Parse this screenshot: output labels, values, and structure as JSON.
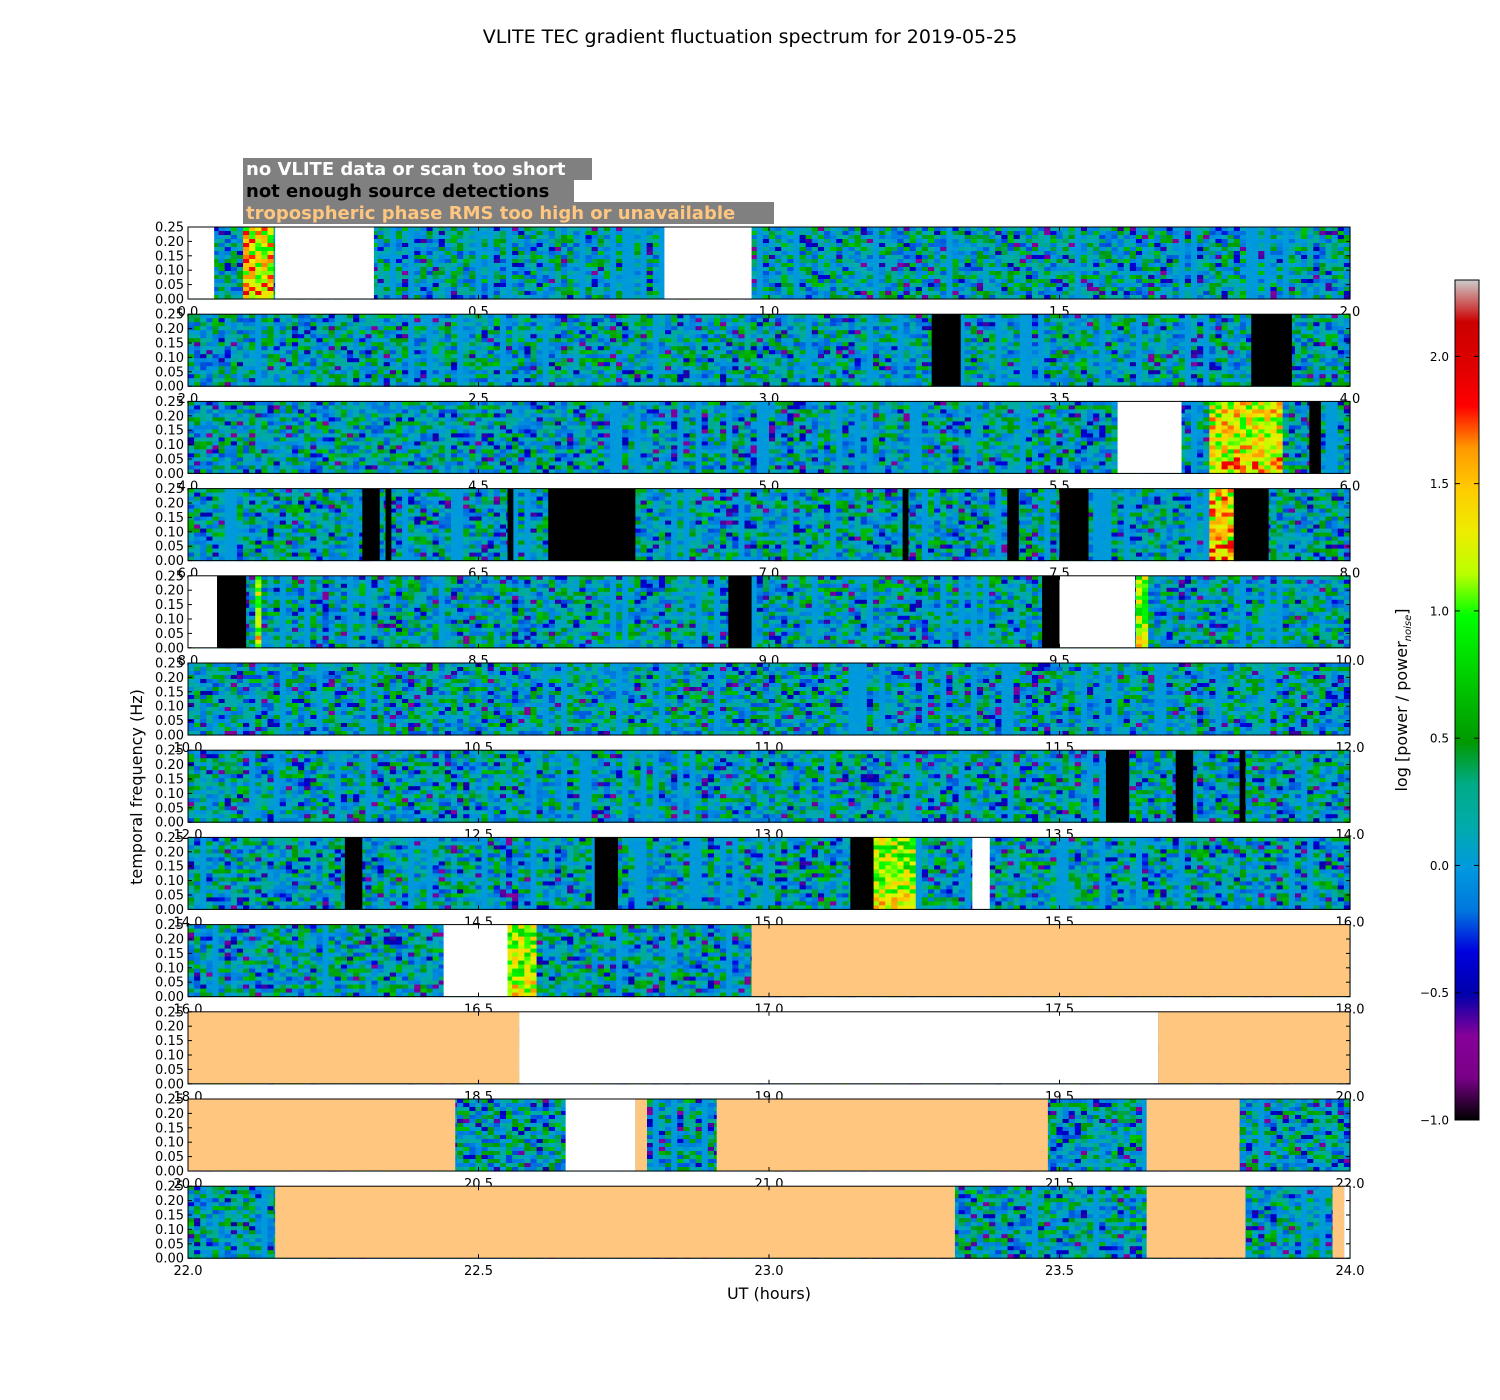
{
  "chart_data": {
    "type": "heatmap",
    "title": "VLITE TEC gradient fluctuation spectrum for 2019-05-25",
    "xlabel": "UT (hours)",
    "ylabel": "temporal frequency (Hz)",
    "ylim": [
      0,
      0.25
    ],
    "y_ticks": [
      "0.00",
      "0.05",
      "0.10",
      "0.15",
      "0.20",
      "0.25"
    ],
    "legend": [
      {
        "label": "no VLITE data or scan too short",
        "text_color": "#ffffff",
        "swatch": "#ffffff"
      },
      {
        "label": "not enough source detections",
        "text_color": "#000000",
        "swatch": "#000000"
      },
      {
        "label": "tropospheric phase RMS too high or unavailable",
        "text_color": "#ffc67f",
        "swatch": "#ffc67f"
      }
    ],
    "legend_placement": "top-left",
    "colorbar": {
      "label_main": "log [power / power",
      "label_sub": "noise",
      "label_end": "]",
      "range": [
        -1.0,
        2.3
      ],
      "ticks": [
        "−1.0",
        "−0.5",
        "0.0",
        "0.5",
        "1.0",
        "1.5",
        "2.0"
      ],
      "tick_values": [
        -1.0,
        -0.5,
        0.0,
        0.5,
        1.0,
        1.5,
        2.0
      ],
      "colormap": "nipy_spectral"
    },
    "panels": [
      {
        "xlim": [
          0,
          2
        ],
        "ticks": [
          "0.0",
          "0.5",
          "1.0",
          "1.5",
          "2.0"
        ],
        "flag_intervals": [
          {
            "start": 0.0,
            "end": 0.045,
            "flag": "no_data"
          },
          {
            "start": 0.15,
            "end": 0.32,
            "flag": "no_data"
          },
          {
            "start": 0.82,
            "end": 0.97,
            "flag": "no_data"
          }
        ],
        "hot_intervals": [
          {
            "start": 0.1,
            "end": 0.15,
            "level": 1.6
          }
        ]
      },
      {
        "xlim": [
          2,
          4
        ],
        "ticks": [
          "2.0",
          "2.5",
          "3.0",
          "3.5",
          "4.0"
        ],
        "flag_intervals": [
          {
            "start": 3.28,
            "end": 3.33,
            "flag": "few_detections"
          },
          {
            "start": 3.83,
            "end": 3.9,
            "flag": "few_detections"
          }
        ],
        "hot_intervals": []
      },
      {
        "xlim": [
          4,
          6
        ],
        "ticks": [
          "4.0",
          "4.5",
          "5.0",
          "5.5",
          "6.0"
        ],
        "flag_intervals": [
          {
            "start": 5.6,
            "end": 5.71,
            "flag": "no_data"
          },
          {
            "start": 5.93,
            "end": 5.95,
            "flag": "few_detections"
          }
        ],
        "hot_intervals": [
          {
            "start": 5.76,
            "end": 5.88,
            "level": 1.5
          }
        ]
      },
      {
        "xlim": [
          6,
          8
        ],
        "ticks": [
          "6.0",
          "6.5",
          "7.0",
          "7.5",
          "8.0"
        ],
        "flag_intervals": [
          {
            "start": 6.3,
            "end": 6.33,
            "flag": "few_detections"
          },
          {
            "start": 6.34,
            "end": 6.35,
            "flag": "few_detections"
          },
          {
            "start": 6.55,
            "end": 6.56,
            "flag": "few_detections"
          },
          {
            "start": 6.62,
            "end": 6.77,
            "flag": "few_detections"
          },
          {
            "start": 7.23,
            "end": 7.24,
            "flag": "few_detections"
          },
          {
            "start": 7.41,
            "end": 7.43,
            "flag": "few_detections"
          },
          {
            "start": 7.5,
            "end": 7.55,
            "flag": "few_detections"
          },
          {
            "start": 7.8,
            "end": 7.86,
            "flag": "few_detections"
          }
        ],
        "hot_intervals": [
          {
            "start": 7.76,
            "end": 7.8,
            "level": 1.6
          }
        ]
      },
      {
        "xlim": [
          8,
          10
        ],
        "ticks": [
          "8.0",
          "8.5",
          "9.0",
          "9.5",
          "10.0"
        ],
        "flag_intervals": [
          {
            "start": 8.0,
            "end": 8.05,
            "flag": "no_data"
          },
          {
            "start": 8.05,
            "end": 8.1,
            "flag": "few_detections"
          },
          {
            "start": 8.93,
            "end": 8.97,
            "flag": "few_detections"
          },
          {
            "start": 9.47,
            "end": 9.5,
            "flag": "few_detections"
          },
          {
            "start": 9.5,
            "end": 9.63,
            "flag": "no_data"
          }
        ],
        "hot_intervals": [
          {
            "start": 8.12,
            "end": 8.13,
            "level": 1.4
          },
          {
            "start": 9.63,
            "end": 9.65,
            "level": 1.3
          }
        ]
      },
      {
        "xlim": [
          10,
          12
        ],
        "ticks": [
          "10.0",
          "10.5",
          "11.0",
          "11.5",
          "12.0"
        ],
        "flag_intervals": [],
        "hot_intervals": []
      },
      {
        "xlim": [
          12,
          14
        ],
        "ticks": [
          "12.0",
          "12.5",
          "13.0",
          "13.5",
          "14.0"
        ],
        "flag_intervals": [
          {
            "start": 13.58,
            "end": 13.62,
            "flag": "few_detections"
          },
          {
            "start": 13.7,
            "end": 13.73,
            "flag": "few_detections"
          },
          {
            "start": 13.81,
            "end": 13.82,
            "flag": "few_detections"
          }
        ],
        "hot_intervals": []
      },
      {
        "xlim": [
          14,
          16
        ],
        "ticks": [
          "14.0",
          "14.5",
          "15.0",
          "15.5",
          "16.0"
        ],
        "flag_intervals": [
          {
            "start": 14.27,
            "end": 14.3,
            "flag": "few_detections"
          },
          {
            "start": 14.7,
            "end": 14.74,
            "flag": "few_detections"
          },
          {
            "start": 15.14,
            "end": 15.18,
            "flag": "few_detections"
          },
          {
            "start": 15.35,
            "end": 15.38,
            "flag": "no_data"
          }
        ],
        "hot_intervals": [
          {
            "start": 15.18,
            "end": 15.25,
            "level": 1.3
          }
        ]
      },
      {
        "xlim": [
          16,
          18
        ],
        "ticks": [
          "16.0",
          "16.5",
          "17.0",
          "17.5",
          "18.0"
        ],
        "flag_intervals": [
          {
            "start": 16.44,
            "end": 16.55,
            "flag": "no_data"
          },
          {
            "start": 16.97,
            "end": 18.0,
            "flag": "troposphere"
          }
        ],
        "hot_intervals": [
          {
            "start": 16.55,
            "end": 16.6,
            "level": 1.3
          }
        ]
      },
      {
        "xlim": [
          18,
          20
        ],
        "ticks": [
          "18.0",
          "18.5",
          "19.0",
          "19.5",
          "20.0"
        ],
        "flag_intervals": [
          {
            "start": 18.0,
            "end": 18.57,
            "flag": "troposphere"
          },
          {
            "start": 18.57,
            "end": 19.67,
            "flag": "no_data"
          },
          {
            "start": 19.67,
            "end": 20.0,
            "flag": "troposphere"
          }
        ],
        "hot_intervals": []
      },
      {
        "xlim": [
          20,
          22
        ],
        "ticks": [
          "20.0",
          "20.5",
          "21.0",
          "21.5",
          "22.0"
        ],
        "flag_intervals": [
          {
            "start": 20.0,
            "end": 20.46,
            "flag": "troposphere"
          },
          {
            "start": 20.65,
            "end": 20.77,
            "flag": "no_data"
          },
          {
            "start": 20.77,
            "end": 20.79,
            "flag": "troposphere"
          },
          {
            "start": 20.91,
            "end": 21.48,
            "flag": "troposphere"
          },
          {
            "start": 21.65,
            "end": 21.81,
            "flag": "troposphere"
          }
        ],
        "hot_intervals": []
      },
      {
        "xlim": [
          22,
          24
        ],
        "ticks": [
          "22.0",
          "22.5",
          "23.0",
          "23.5",
          "24.0"
        ],
        "flag_intervals": [
          {
            "start": 22.15,
            "end": 23.32,
            "flag": "troposphere"
          },
          {
            "start": 23.65,
            "end": 23.82,
            "flag": "troposphere"
          },
          {
            "start": 23.97,
            "end": 23.99,
            "flag": "troposphere"
          },
          {
            "start": 23.99,
            "end": 24.0,
            "flag": "no_data"
          }
        ],
        "hot_intervals": []
      }
    ]
  }
}
